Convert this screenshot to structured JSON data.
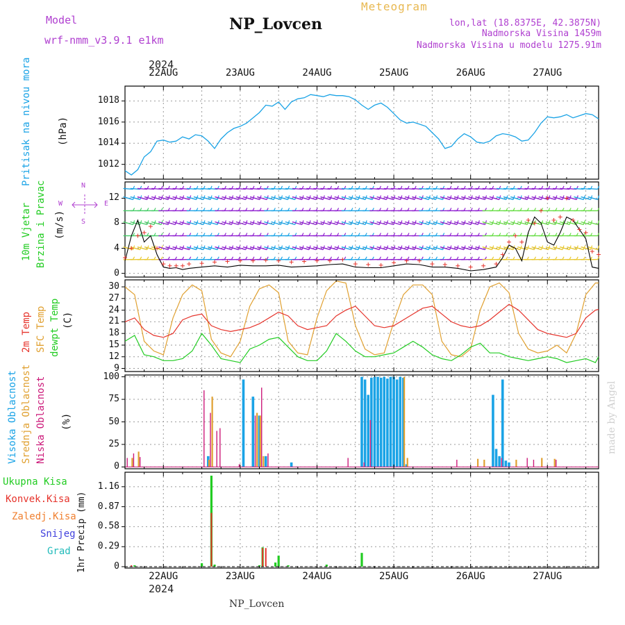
{
  "header": {
    "model_label": "Model",
    "model_name": "wrf-nmm_v3.9.1  e1km",
    "station": "NP_Lovcen",
    "meteogram": "Meteogram",
    "lonlat": "lon,lat (18.8375E, 42.3875N)",
    "altitude": "Nadmorska Visina 1459m",
    "model_altitude": "Nadmorska Visina u modelu 1275.91m",
    "footer_station": "NP_Lovcen",
    "watermark": "made by Angel",
    "year_top": "2024",
    "year_bottom": "2024"
  },
  "dates": [
    "22AUG",
    "23AUG",
    "24AUG",
    "25AUG",
    "26AUG",
    "27AUG"
  ],
  "colors": {
    "pressure": "#1aa3e6",
    "wind_speed": "#000000",
    "wind_gust": "#e6332b",
    "temp2m": "#e6332b",
    "sfc": "#e0a030",
    "dewpt": "#22cc22",
    "high_cloud": "#1aa3e6",
    "mid_cloud": "#e0a030",
    "low_cloud": "#cc1a7a",
    "total_precip": "#22cc22",
    "conv_precip": "#e6332b",
    "frozen": "#f08030",
    "snow": "#4040dd",
    "hail": "#22bbbb",
    "purple": "#b040d0",
    "gold": "#e8b850"
  },
  "panels": {
    "pressure": {
      "label": "Pritisak na nivou mora",
      "unit": "(hPa)"
    },
    "wind": {
      "label1": "10m Vjetar",
      "label2": "Brzina i Pravac",
      "unit": "(m/s)",
      "compass_n": "N",
      "compass_s": "S",
      "compass_w": "W",
      "compass_e": "E"
    },
    "temp": {
      "label1": "2m Temp",
      "label2": "SFC Temp",
      "label3": "dewpt Temp",
      "unit": "(C)"
    },
    "cloud": {
      "label1": "Visoka Oblacnost",
      "label2": "Srednja Oblacnost",
      "label3": "Niska Oblacnost",
      "unit": "(%)"
    },
    "precip": {
      "total": "Ukupna Kisa",
      "conv": "Konvek.Kisa",
      "frozen": "Zaledj.Kisa",
      "snow": "Snijeg",
      "hail": "Grad",
      "unit": "1hr Precip (mm)"
    }
  },
  "chart_data": [
    {
      "type": "line",
      "title": "Pritisak na nivou mora",
      "ylabel": "(hPa)",
      "x_unit": "hours from 2024-08-21 12 UTC",
      "ylim": [
        1010.6,
        1019.4
      ],
      "yticks": [
        1012,
        1014,
        1016,
        1018
      ],
      "grid": true,
      "series": [
        {
          "name": "Pritisak na nivou mora",
          "x": [
            0,
            2,
            4,
            6,
            8,
            10,
            12,
            14,
            16,
            18,
            20,
            22,
            24,
            26,
            28,
            30,
            32,
            34,
            36,
            38,
            40,
            42,
            44,
            46,
            48,
            50,
            52,
            54,
            56,
            58,
            60,
            62,
            64,
            66,
            68,
            70,
            72,
            74,
            76,
            78,
            80,
            82,
            84,
            86,
            88,
            90,
            92,
            94,
            96,
            98,
            100,
            102,
            104,
            106,
            108,
            110,
            112,
            114,
            116,
            118,
            120,
            122,
            124,
            126,
            128,
            130,
            132,
            134,
            136,
            138,
            140,
            142,
            144,
            146,
            148
          ],
          "values": [
            1011.4,
            1011.0,
            1011.5,
            1012.7,
            1013.2,
            1014.2,
            1014.3,
            1014.1,
            1014.2,
            1014.6,
            1014.4,
            1014.8,
            1014.7,
            1014.2,
            1013.5,
            1014.4,
            1015.0,
            1015.4,
            1015.6,
            1015.9,
            1016.4,
            1016.9,
            1017.6,
            1017.5,
            1017.9,
            1017.2,
            1017.9,
            1018.2,
            1018.3,
            1018.6,
            1018.5,
            1018.4,
            1018.6,
            1018.5,
            1018.5,
            1018.4,
            1018.1,
            1017.6,
            1017.2,
            1017.6,
            1017.8,
            1017.4,
            1016.8,
            1016.2,
            1015.9,
            1016.0,
            1015.8,
            1015.6,
            1015.0,
            1014.4,
            1013.5,
            1013.7,
            1014.4,
            1014.9,
            1014.6,
            1014.1,
            1014.0,
            1014.2,
            1014.7,
            1014.9,
            1014.8,
            1014.6,
            1014.2,
            1014.3,
            1015.0,
            1015.9,
            1016.5,
            1016.4,
            1016.5,
            1016.7,
            1016.4,
            1016.6,
            1016.8,
            1016.7,
            1016.3
          ]
        }
      ]
    },
    {
      "type": "line",
      "title": "10m Vjetar Brzina i Pravac",
      "ylabel": "(m/s)",
      "x_unit": "hours from 2024-08-21 12 UTC",
      "ylim": [
        -0.6,
        14.6
      ],
      "yticks": [
        0,
        4,
        8,
        12
      ],
      "grid": true,
      "series": [
        {
          "name": "wind speed",
          "x": [
            0,
            2,
            4,
            6,
            8,
            10,
            12,
            14,
            16,
            18,
            20,
            24,
            28,
            32,
            36,
            40,
            44,
            48,
            52,
            56,
            60,
            64,
            68,
            72,
            76,
            80,
            84,
            88,
            92,
            96,
            100,
            104,
            108,
            112,
            116,
            118,
            120,
            122,
            124,
            126,
            128,
            130,
            132,
            134,
            136,
            138,
            140,
            142,
            144,
            146,
            148
          ],
          "values": [
            2.0,
            6.0,
            8.5,
            5.0,
            6.0,
            3.0,
            1.0,
            0.8,
            0.9,
            0.6,
            0.8,
            1.0,
            1.2,
            1.0,
            1.3,
            1.2,
            1.2,
            1.3,
            1.0,
            1.1,
            1.2,
            1.4,
            1.5,
            1.0,
            0.9,
            0.9,
            1.2,
            1.5,
            1.4,
            1.0,
            1.0,
            0.8,
            0.4,
            0.6,
            1.0,
            2.5,
            4.5,
            4.0,
            2.0,
            6.5,
            9.0,
            8.0,
            5.0,
            4.5,
            6.5,
            9.0,
            8.5,
            7.0,
            5.5,
            1.0,
            0.8
          ]
        },
        {
          "name": "wind gust",
          "x": [
            0,
            2,
            4,
            6,
            8,
            10,
            12,
            14,
            16,
            18,
            20,
            24,
            28,
            32,
            36,
            40,
            44,
            48,
            52,
            56,
            60,
            64,
            68,
            72,
            76,
            80,
            84,
            88,
            92,
            96,
            100,
            104,
            108,
            112,
            116,
            118,
            120,
            122,
            124,
            126,
            128,
            130,
            132,
            134,
            136,
            138,
            140,
            142,
            144,
            146,
            148
          ],
          "values": [
            2.5,
            4.0,
            6.0,
            6.5,
            7.5,
            4.0,
            1.5,
            1.2,
            1.2,
            1.2,
            1.5,
            1.6,
            1.8,
            1.9,
            2.0,
            2.0,
            2.1,
            2.0,
            1.8,
            1.9,
            2.0,
            2.0,
            2.2,
            1.5,
            1.4,
            1.3,
            1.7,
            2.0,
            2.0,
            1.5,
            1.4,
            1.2,
            1.0,
            1.2,
            1.5,
            3.0,
            5.0,
            6.0,
            5.0,
            8.5,
            8.0,
            10.0,
            12.0,
            8.5,
            9.0,
            12.0,
            8.5,
            7.0,
            6.5,
            3.5,
            3.0
          ]
        }
      ]
    },
    {
      "type": "line",
      "title": "2m Temp / SFC Temp / dewpt Temp",
      "ylabel": "(C)",
      "x_unit": "hours from 2024-08-21 12 UTC",
      "ylim": [
        8.2,
        31.8
      ],
      "yticks": [
        9,
        12,
        15,
        18,
        21,
        24,
        27,
        30
      ],
      "grid": true,
      "series": [
        {
          "name": "2m Temp",
          "x": [
            0,
            3,
            6,
            9,
            12,
            15,
            18,
            21,
            24,
            27,
            30,
            33,
            36,
            39,
            42,
            45,
            48,
            51,
            54,
            57,
            60,
            63,
            66,
            69,
            72,
            75,
            78,
            81,
            84,
            87,
            90,
            93,
            96,
            99,
            102,
            105,
            108,
            111,
            114,
            117,
            120,
            123,
            126,
            129,
            132,
            135,
            138,
            141,
            144,
            147,
            148
          ],
          "values": [
            21.0,
            22.0,
            19.0,
            17.5,
            17.0,
            18.0,
            21.5,
            22.5,
            23.0,
            20.0,
            19.0,
            18.5,
            19.0,
            19.5,
            20.5,
            22.0,
            23.5,
            22.5,
            20.0,
            19.0,
            19.5,
            20.0,
            22.5,
            24.0,
            25.0,
            22.5,
            20.0,
            19.5,
            20.0,
            21.5,
            23.0,
            24.5,
            25.0,
            23.0,
            21.0,
            20.0,
            19.5,
            20.0,
            21.5,
            23.5,
            25.5,
            24.0,
            21.5,
            19.0,
            18.0,
            17.5,
            17.0,
            18.0,
            22.0,
            24.0,
            24.2
          ]
        },
        {
          "name": "SFC Temp",
          "x": [
            0,
            3,
            6,
            9,
            12,
            15,
            18,
            21,
            24,
            27,
            30,
            33,
            36,
            39,
            42,
            45,
            48,
            51,
            54,
            57,
            60,
            63,
            66,
            69,
            72,
            75,
            78,
            81,
            84,
            87,
            90,
            93,
            96,
            99,
            102,
            105,
            108,
            111,
            114,
            117,
            120,
            123,
            126,
            129,
            132,
            135,
            138,
            141,
            144,
            147,
            148
          ],
          "values": [
            30.0,
            28.0,
            16.0,
            13.5,
            12.5,
            22.0,
            28.0,
            30.5,
            29.0,
            16.5,
            13.0,
            12.0,
            16.0,
            25.0,
            29.5,
            30.5,
            28.5,
            16.0,
            13.0,
            12.5,
            22.0,
            29.0,
            31.5,
            31.0,
            20.0,
            14.0,
            12.5,
            13.0,
            21.0,
            28.0,
            30.5,
            30.5,
            28.0,
            16.0,
            12.5,
            12.0,
            14.0,
            24.0,
            30.0,
            31.0,
            28.5,
            18.0,
            14.0,
            13.0,
            13.5,
            15.0,
            13.0,
            18.0,
            28.0,
            31.0,
            31.0
          ]
        },
        {
          "name": "dewpt Temp",
          "x": [
            0,
            3,
            6,
            9,
            12,
            15,
            18,
            21,
            24,
            27,
            30,
            33,
            36,
            39,
            42,
            45,
            48,
            51,
            54,
            57,
            60,
            63,
            66,
            69,
            72,
            75,
            78,
            81,
            84,
            87,
            90,
            93,
            96,
            99,
            102,
            105,
            108,
            111,
            114,
            117,
            120,
            123,
            126,
            129,
            132,
            135,
            138,
            141,
            144,
            147,
            148
          ],
          "values": [
            16.0,
            17.5,
            12.5,
            12.0,
            11.0,
            11.0,
            11.5,
            13.5,
            18.0,
            15.0,
            11.5,
            11.0,
            10.5,
            14.0,
            15.0,
            16.5,
            17.0,
            14.5,
            12.0,
            11.0,
            11.0,
            13.5,
            18.0,
            16.0,
            13.5,
            12.0,
            12.0,
            12.5,
            13.0,
            14.5,
            16.0,
            14.5,
            12.5,
            11.5,
            11.0,
            12.5,
            14.5,
            15.5,
            13.0,
            13.0,
            12.0,
            11.5,
            11.0,
            11.5,
            12.0,
            11.5,
            10.5,
            11.0,
            11.5,
            10.5,
            12.0
          ]
        }
      ]
    },
    {
      "type": "bar",
      "title": "Visoka / Srednja / Niska Oblacnost",
      "ylabel": "(%)",
      "x_unit": "hours from 2024-08-21 12 UTC",
      "ylim": [
        -2,
        102
      ],
      "yticks": [
        0,
        25,
        50,
        75,
        100
      ],
      "grid": true,
      "series": [
        {
          "name": "Visoka Oblacnost",
          "x": [
            26,
            37,
            40,
            42,
            44,
            52,
            74,
            75,
            76,
            77,
            78,
            79,
            80,
            81,
            82,
            83,
            84,
            85,
            86,
            87,
            88,
            115,
            116,
            117,
            118,
            119,
            120
          ],
          "values": [
            12,
            97,
            78,
            57,
            12,
            5,
            100,
            97,
            80,
            99,
            100,
            100,
            99,
            100,
            98,
            100,
            100,
            97,
            100,
            99,
            3,
            80,
            20,
            12,
            97,
            7,
            5
          ]
        },
        {
          "name": "Srednja Oblacnost",
          "x": [
            2,
            4,
            26,
            27,
            41,
            42,
            43,
            87,
            88,
            110,
            112,
            122,
            130,
            134
          ],
          "values": [
            10,
            17,
            8,
            78,
            60,
            57,
            12,
            100,
            10,
            9,
            8,
            8,
            10,
            9
          ]
        },
        {
          "name": "Niska Oblacnost",
          "x": [
            1,
            3,
            5,
            25,
            27,
            29,
            30,
            36,
            41,
            43,
            45,
            70,
            75,
            77,
            104,
            118,
            126,
            128,
            135
          ],
          "values": [
            10,
            15,
            11,
            85,
            60,
            40,
            43,
            3,
            57,
            88,
            15,
            10,
            5,
            52,
            8,
            10,
            10,
            8,
            8
          ]
        }
      ]
    },
    {
      "type": "bar",
      "title": "1hr Precip (mm)",
      "ylabel": "1hr Precip (mm)",
      "x_unit": "hours from 2024-08-21 12 UTC",
      "ylim": [
        -0.02,
        1.37
      ],
      "yticks": [
        0,
        0.29,
        0.58,
        0.87,
        1.16
      ],
      "grid": true,
      "series": [
        {
          "name": "Ukupna Kisa",
          "x": [
            3,
            24,
            27,
            28,
            42,
            43,
            47,
            48,
            51,
            63,
            74
          ],
          "values": [
            0.02,
            0.05,
            1.32,
            0.03,
            0.02,
            0.28,
            0.06,
            0.16,
            0.02,
            0.03,
            0.2
          ]
        },
        {
          "name": "Konvek.Kisa",
          "x": [
            2,
            27,
            43,
            44
          ],
          "values": [
            0.02,
            0.78,
            0.27,
            0.27
          ]
        },
        {
          "name": "Zaledj.Kisa",
          "x": [],
          "values": []
        },
        {
          "name": "Snijeg",
          "x": [],
          "values": []
        },
        {
          "name": "Grad",
          "x": [],
          "values": []
        }
      ]
    }
  ]
}
